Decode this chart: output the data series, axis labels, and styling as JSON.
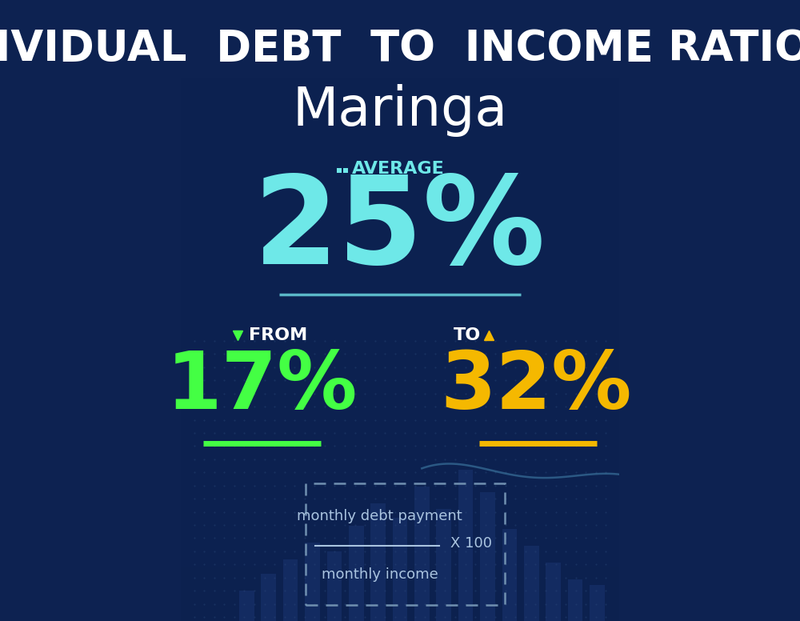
{
  "bg_color": "#0d2251",
  "title_line1": "INDIVIDUAL  DEBT  TO  INCOME RATIO  IN",
  "title_line2": "Maringa",
  "title_color": "#ffffff",
  "title_fontsize": 38,
  "city_fontsize": 48,
  "avg_label": "AVERAGE",
  "avg_value": "25%",
  "avg_color": "#6ee8e8",
  "avg_label_color": "#6ee8e8",
  "avg_fontsize": 110,
  "avg_label_fontsize": 16,
  "avg_underline_color": "#5ab8c8",
  "from_label": "FROM",
  "from_value": "17%",
  "from_color": "#44ff44",
  "from_label_color": "#ffffff",
  "from_fontsize": 72,
  "from_label_fontsize": 16,
  "from_underline_color": "#44ff44",
  "to_label": "TO",
  "to_value": "32%",
  "to_color": "#f5b800",
  "to_label_color": "#ffffff",
  "to_fontsize": 72,
  "to_label_fontsize": 16,
  "to_underline_color": "#f5b800",
  "formula_numerator": "monthly debt payment",
  "formula_denominator": "monthly income",
  "formula_multiplier": "X 100",
  "formula_text_color": "#aac4e0",
  "formula_border_color": "#7090b0",
  "line_color": "#4a90b8",
  "icon_color": "#6ee8e8",
  "bar_color": "#1a3570",
  "dot_color": "#2a4a7a",
  "bar_positions": [
    1.5,
    2.0,
    2.5,
    3.0,
    3.5,
    4.0,
    4.5,
    5.0,
    5.5,
    6.0,
    6.5,
    7.0,
    7.5,
    8.0,
    8.5,
    9.0,
    9.5
  ],
  "bar_heights": [
    0.55,
    0.85,
    1.1,
    1.4,
    1.25,
    1.7,
    2.1,
    1.85,
    2.4,
    2.0,
    2.7,
    2.3,
    1.65,
    1.35,
    1.05,
    0.75,
    0.65
  ]
}
